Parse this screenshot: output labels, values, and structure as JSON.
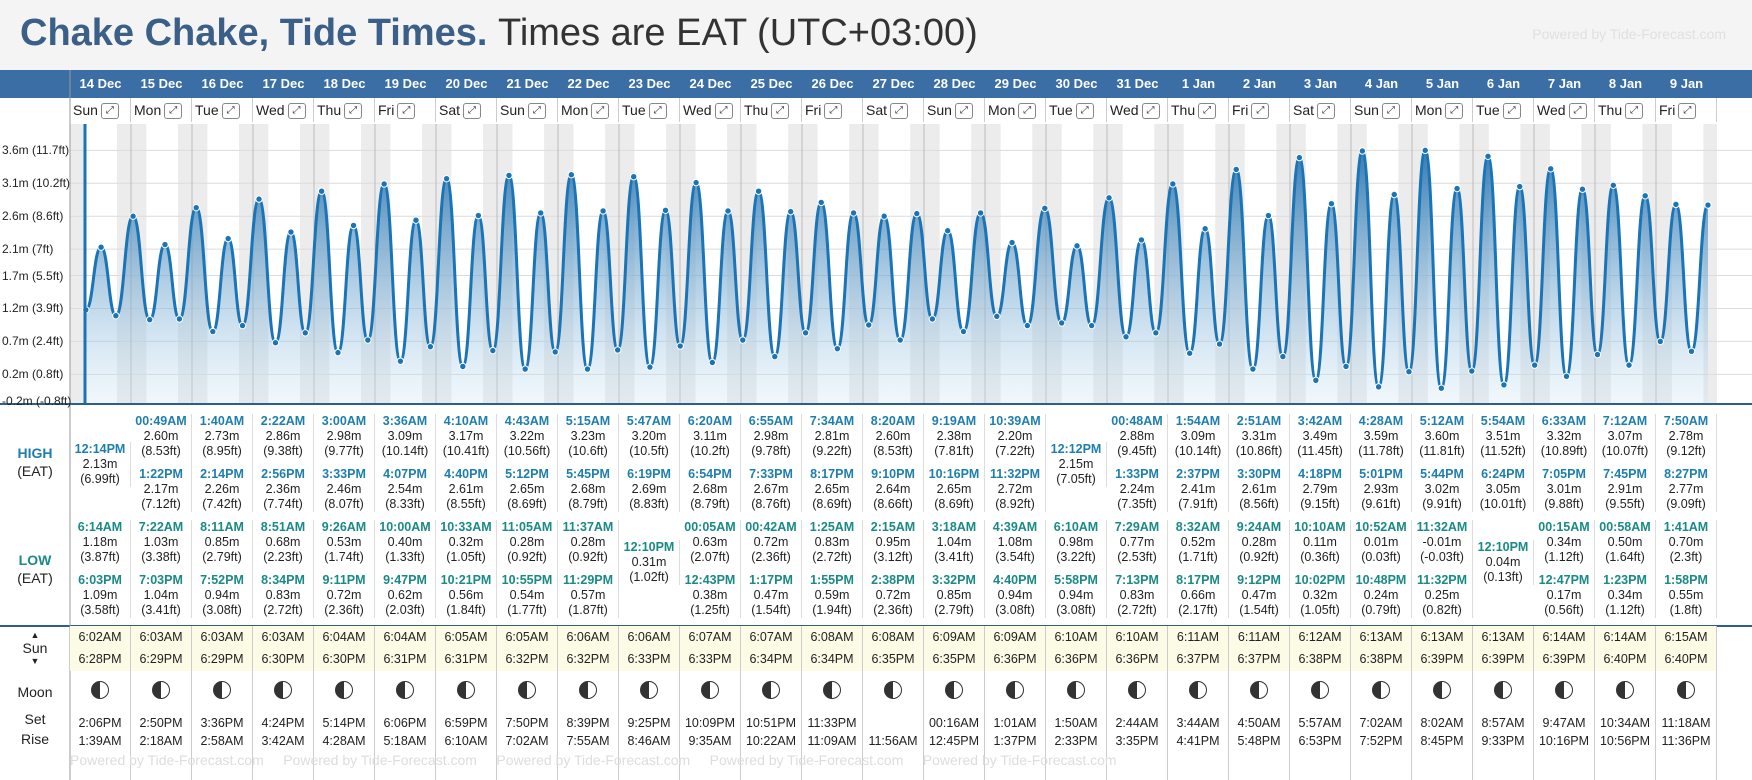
{
  "title": {
    "place": "Chake Chake, Tide Times.",
    "sub": "Times are EAT (UTC+03:00)",
    "powered": "Powered by Tide-Forecast.com"
  },
  "row_labels": {
    "high": "HIGH",
    "low": "LOW",
    "tz": "(EAT)",
    "sun": "Sun",
    "moon": "Moon",
    "set": "Set",
    "rise": "Rise"
  },
  "axis_labels": [
    "3.6m (11.7ft)",
    "3.1m (10.2ft)",
    "2.6m (8.6ft)",
    "2.1m (7ft)",
    "1.7m (5.5ft)",
    "1.2m (3.9ft)",
    "0.7m (2.4ft)",
    "0.2m (0.8ft)",
    "-0.2m (-0.8ft)"
  ],
  "chart_data": {
    "type": "area",
    "unit": "m",
    "ylim": [
      -0.25,
      4.0
    ],
    "days": [
      {
        "date": "14 Dec",
        "dow": "Sun",
        "highs": [
          [
            "12:14PM",
            "2.13m",
            "(6.99ft)"
          ]
        ],
        "lows": [
          [
            "6:14AM",
            "1.18m",
            "(3.87ft)"
          ],
          [
            "6:03PM",
            "1.09m",
            "(3.58ft)"
          ]
        ],
        "sun": [
          "6:02AM",
          "6:28PM"
        ],
        "moon": [
          "2:06PM",
          "1:39AM"
        ]
      },
      {
        "date": "15 Dec",
        "dow": "Mon",
        "highs": [
          [
            "00:49AM",
            "2.60m",
            "(8.53ft)"
          ],
          [
            "1:22PM",
            "2.17m",
            "(7.12ft)"
          ]
        ],
        "lows": [
          [
            "7:22AM",
            "1.03m",
            "(3.38ft)"
          ],
          [
            "7:03PM",
            "1.04m",
            "(3.41ft)"
          ]
        ],
        "sun": [
          "6:03AM",
          "6:29PM"
        ],
        "moon": [
          "2:50PM",
          "2:18AM"
        ]
      },
      {
        "date": "16 Dec",
        "dow": "Tue",
        "highs": [
          [
            "1:40AM",
            "2.73m",
            "(8.95ft)"
          ],
          [
            "2:14PM",
            "2.26m",
            "(7.42ft)"
          ]
        ],
        "lows": [
          [
            "8:11AM",
            "0.85m",
            "(2.79ft)"
          ],
          [
            "7:52PM",
            "0.94m",
            "(3.08ft)"
          ]
        ],
        "sun": [
          "6:03AM",
          "6:29PM"
        ],
        "moon": [
          "3:36PM",
          "2:58AM"
        ]
      },
      {
        "date": "17 Dec",
        "dow": "Wed",
        "highs": [
          [
            "2:22AM",
            "2.86m",
            "(9.38ft)"
          ],
          [
            "2:56PM",
            "2.36m",
            "(7.74ft)"
          ]
        ],
        "lows": [
          [
            "8:51AM",
            "0.68m",
            "(2.23ft)"
          ],
          [
            "8:34PM",
            "0.83m",
            "(2.72ft)"
          ]
        ],
        "sun": [
          "6:03AM",
          "6:30PM"
        ],
        "moon": [
          "4:24PM",
          "3:42AM"
        ]
      },
      {
        "date": "18 Dec",
        "dow": "Thu",
        "highs": [
          [
            "3:00AM",
            "2.98m",
            "(9.77ft)"
          ],
          [
            "3:33PM",
            "2.46m",
            "(8.07ft)"
          ]
        ],
        "lows": [
          [
            "9:26AM",
            "0.53m",
            "(1.74ft)"
          ],
          [
            "9:11PM",
            "0.72m",
            "(2.36ft)"
          ]
        ],
        "sun": [
          "6:04AM",
          "6:30PM"
        ],
        "moon": [
          "5:14PM",
          "4:28AM"
        ]
      },
      {
        "date": "19 Dec",
        "dow": "Fri",
        "highs": [
          [
            "3:36AM",
            "3.09m",
            "(10.14ft)"
          ],
          [
            "4:07PM",
            "2.54m",
            "(8.33ft)"
          ]
        ],
        "lows": [
          [
            "10:00AM",
            "0.40m",
            "(1.33ft)"
          ],
          [
            "9:47PM",
            "0.62m",
            "(2.03ft)"
          ]
        ],
        "sun": [
          "6:04AM",
          "6:31PM"
        ],
        "moon": [
          "6:06PM",
          "5:18AM"
        ]
      },
      {
        "date": "20 Dec",
        "dow": "Sat",
        "highs": [
          [
            "4:10AM",
            "3.17m",
            "(10.41ft)"
          ],
          [
            "4:40PM",
            "2.61m",
            "(8.55ft)"
          ]
        ],
        "lows": [
          [
            "10:33AM",
            "0.32m",
            "(1.05ft)"
          ],
          [
            "10:21PM",
            "0.56m",
            "(1.84ft)"
          ]
        ],
        "sun": [
          "6:05AM",
          "6:31PM"
        ],
        "moon": [
          "6:59PM",
          "6:10AM"
        ]
      },
      {
        "date": "21 Dec",
        "dow": "Sun",
        "highs": [
          [
            "4:43AM",
            "3.22m",
            "(10.56ft)"
          ],
          [
            "5:12PM",
            "2.65m",
            "(8.69ft)"
          ]
        ],
        "lows": [
          [
            "11:05AM",
            "0.28m",
            "(0.92ft)"
          ],
          [
            "10:55PM",
            "0.54m",
            "(1.77ft)"
          ]
        ],
        "sun": [
          "6:05AM",
          "6:32PM"
        ],
        "moon": [
          "7:50PM",
          "7:02AM"
        ]
      },
      {
        "date": "22 Dec",
        "dow": "Mon",
        "highs": [
          [
            "5:15AM",
            "3.23m",
            "(10.6ft)"
          ],
          [
            "5:45PM",
            "2.68m",
            "(8.79ft)"
          ]
        ],
        "lows": [
          [
            "11:37AM",
            "0.28m",
            "(0.92ft)"
          ],
          [
            "11:29PM",
            "0.57m",
            "(1.87ft)"
          ]
        ],
        "sun": [
          "6:06AM",
          "6:32PM"
        ],
        "moon": [
          "8:39PM",
          "7:55AM"
        ]
      },
      {
        "date": "23 Dec",
        "dow": "Tue",
        "highs": [
          [
            "5:47AM",
            "3.20m",
            "(10.5ft)"
          ],
          [
            "6:19PM",
            "2.69m",
            "(8.83ft)"
          ]
        ],
        "lows": [
          [
            "12:10PM",
            "0.31m",
            "(1.02ft)"
          ]
        ],
        "sun": [
          "6:06AM",
          "6:33PM"
        ],
        "moon": [
          "9:25PM",
          "8:46AM"
        ]
      },
      {
        "date": "24 Dec",
        "dow": "Wed",
        "highs": [
          [
            "6:20AM",
            "3.11m",
            "(10.2ft)"
          ],
          [
            "6:54PM",
            "2.68m",
            "(8.79ft)"
          ]
        ],
        "lows": [
          [
            "00:05AM",
            "0.63m",
            "(2.07ft)"
          ],
          [
            "12:43PM",
            "0.38m",
            "(1.25ft)"
          ]
        ],
        "sun": [
          "6:07AM",
          "6:33PM"
        ],
        "moon": [
          "10:09PM",
          "9:35AM"
        ]
      },
      {
        "date": "25 Dec",
        "dow": "Thu",
        "highs": [
          [
            "6:55AM",
            "2.98m",
            "(9.78ft)"
          ],
          [
            "7:33PM",
            "2.67m",
            "(8.76ft)"
          ]
        ],
        "lows": [
          [
            "00:42AM",
            "0.72m",
            "(2.36ft)"
          ],
          [
            "1:17PM",
            "0.47m",
            "(1.54ft)"
          ]
        ],
        "sun": [
          "6:07AM",
          "6:34PM"
        ],
        "moon": [
          "10:51PM",
          "10:22AM"
        ]
      },
      {
        "date": "26 Dec",
        "dow": "Fri",
        "highs": [
          [
            "7:34AM",
            "2.81m",
            "(9.22ft)"
          ],
          [
            "8:17PM",
            "2.65m",
            "(8.69ft)"
          ]
        ],
        "lows": [
          [
            "1:25AM",
            "0.83m",
            "(2.72ft)"
          ],
          [
            "1:55PM",
            "0.59m",
            "(1.94ft)"
          ]
        ],
        "sun": [
          "6:08AM",
          "6:34PM"
        ],
        "moon": [
          "11:33PM",
          "11:09AM"
        ]
      },
      {
        "date": "27 Dec",
        "dow": "Sat",
        "highs": [
          [
            "8:20AM",
            "2.60m",
            "(8.53ft)"
          ],
          [
            "9:10PM",
            "2.64m",
            "(8.66ft)"
          ]
        ],
        "lows": [
          [
            "2:15AM",
            "0.95m",
            "(3.12ft)"
          ],
          [
            "2:38PM",
            "0.72m",
            "(2.36ft)"
          ]
        ],
        "sun": [
          "6:08AM",
          "6:35PM"
        ],
        "moon": [
          "",
          "11:56AM"
        ]
      },
      {
        "date": "28 Dec",
        "dow": "Sun",
        "highs": [
          [
            "9:19AM",
            "2.38m",
            "(7.81ft)"
          ],
          [
            "10:16PM",
            "2.65m",
            "(8.69ft)"
          ]
        ],
        "lows": [
          [
            "3:18AM",
            "1.04m",
            "(3.41ft)"
          ],
          [
            "3:32PM",
            "0.85m",
            "(2.79ft)"
          ]
        ],
        "sun": [
          "6:09AM",
          "6:35PM"
        ],
        "moon": [
          "00:16AM",
          "12:45PM"
        ]
      },
      {
        "date": "29 Dec",
        "dow": "Mon",
        "highs": [
          [
            "10:39AM",
            "2.20m",
            "(7.22ft)"
          ],
          [
            "11:32PM",
            "2.72m",
            "(8.92ft)"
          ]
        ],
        "lows": [
          [
            "4:39AM",
            "1.08m",
            "(3.54ft)"
          ],
          [
            "4:40PM",
            "0.94m",
            "(3.08ft)"
          ]
        ],
        "sun": [
          "6:09AM",
          "6:36PM"
        ],
        "moon": [
          "1:01AM",
          "1:37PM"
        ]
      },
      {
        "date": "30 Dec",
        "dow": "Tue",
        "highs": [
          [
            "12:12PM",
            "2.15m",
            "(7.05ft)"
          ]
        ],
        "lows": [
          [
            "6:10AM",
            "0.98m",
            "(3.22ft)"
          ],
          [
            "5:58PM",
            "0.94m",
            "(3.08ft)"
          ]
        ],
        "sun": [
          "6:10AM",
          "6:36PM"
        ],
        "moon": [
          "1:50AM",
          "2:33PM"
        ]
      },
      {
        "date": "31 Dec",
        "dow": "Wed",
        "highs": [
          [
            "00:48AM",
            "2.88m",
            "(9.45ft)"
          ],
          [
            "1:33PM",
            "2.24m",
            "(7.35ft)"
          ]
        ],
        "lows": [
          [
            "7:29AM",
            "0.77m",
            "(2.53ft)"
          ],
          [
            "7:13PM",
            "0.83m",
            "(2.72ft)"
          ]
        ],
        "sun": [
          "6:10AM",
          "6:36PM"
        ],
        "moon": [
          "2:44AM",
          "3:35PM"
        ]
      },
      {
        "date": "1 Jan",
        "dow": "Thu",
        "highs": [
          [
            "1:54AM",
            "3.09m",
            "(10.14ft)"
          ],
          [
            "2:37PM",
            "2.41m",
            "(7.91ft)"
          ]
        ],
        "lows": [
          [
            "8:32AM",
            "0.52m",
            "(1.71ft)"
          ],
          [
            "8:17PM",
            "0.66m",
            "(2.17ft)"
          ]
        ],
        "sun": [
          "6:11AM",
          "6:37PM"
        ],
        "moon": [
          "3:44AM",
          "4:41PM"
        ]
      },
      {
        "date": "2 Jan",
        "dow": "Fri",
        "highs": [
          [
            "2:51AM",
            "3.31m",
            "(10.86ft)"
          ],
          [
            "3:30PM",
            "2.61m",
            "(8.56ft)"
          ]
        ],
        "lows": [
          [
            "9:24AM",
            "0.28m",
            "(0.92ft)"
          ],
          [
            "9:12PM",
            "0.47m",
            "(1.54ft)"
          ]
        ],
        "sun": [
          "6:11AM",
          "6:37PM"
        ],
        "moon": [
          "4:50AM",
          "5:48PM"
        ]
      },
      {
        "date": "3 Jan",
        "dow": "Sat",
        "highs": [
          [
            "3:42AM",
            "3.49m",
            "(11.45ft)"
          ],
          [
            "4:18PM",
            "2.79m",
            "(9.15ft)"
          ]
        ],
        "lows": [
          [
            "10:10AM",
            "0.11m",
            "(0.36ft)"
          ],
          [
            "10:02PM",
            "0.32m",
            "(1.05ft)"
          ]
        ],
        "sun": [
          "6:12AM",
          "6:38PM"
        ],
        "moon": [
          "5:57AM",
          "6:53PM"
        ]
      },
      {
        "date": "4 Jan",
        "dow": "Sun",
        "highs": [
          [
            "4:28AM",
            "3.59m",
            "(11.78ft)"
          ],
          [
            "5:01PM",
            "2.93m",
            "(9.61ft)"
          ]
        ],
        "lows": [
          [
            "10:52AM",
            "0.01m",
            "(0.03ft)"
          ],
          [
            "10:48PM",
            "0.24m",
            "(0.79ft)"
          ]
        ],
        "sun": [
          "6:13AM",
          "6:38PM"
        ],
        "moon": [
          "7:02AM",
          "7:52PM"
        ]
      },
      {
        "date": "5 Jan",
        "dow": "Mon",
        "highs": [
          [
            "5:12AM",
            "3.60m",
            "(11.81ft)"
          ],
          [
            "5:44PM",
            "3.02m",
            "(9.91ft)"
          ]
        ],
        "lows": [
          [
            "11:32AM",
            "-0.01m",
            "(-0.03ft)"
          ],
          [
            "11:32PM",
            "0.25m",
            "(0.82ft)"
          ]
        ],
        "sun": [
          "6:13AM",
          "6:39PM"
        ],
        "moon": [
          "8:02AM",
          "8:45PM"
        ]
      },
      {
        "date": "6 Jan",
        "dow": "Tue",
        "highs": [
          [
            "5:54AM",
            "3.51m",
            "(11.52ft)"
          ],
          [
            "6:24PM",
            "3.05m",
            "(10.01ft)"
          ]
        ],
        "lows": [
          [
            "12:10PM",
            "0.04m",
            "(0.13ft)"
          ]
        ],
        "sun": [
          "6:13AM",
          "6:39PM"
        ],
        "moon": [
          "8:57AM",
          "9:33PM"
        ]
      },
      {
        "date": "7 Jan",
        "dow": "Wed",
        "highs": [
          [
            "6:33AM",
            "3.32m",
            "(10.89ft)"
          ],
          [
            "7:05PM",
            "3.01m",
            "(9.88ft)"
          ]
        ],
        "lows": [
          [
            "00:15AM",
            "0.34m",
            "(1.12ft)"
          ],
          [
            "12:47PM",
            "0.17m",
            "(0.56ft)"
          ]
        ],
        "sun": [
          "6:14AM",
          "6:39PM"
        ],
        "moon": [
          "9:47AM",
          "10:16PM"
        ]
      },
      {
        "date": "8 Jan",
        "dow": "Thu",
        "highs": [
          [
            "7:12AM",
            "3.07m",
            "(10.07ft)"
          ],
          [
            "7:45PM",
            "2.91m",
            "(9.55ft)"
          ]
        ],
        "lows": [
          [
            "00:58AM",
            "0.50m",
            "(1.64ft)"
          ],
          [
            "1:23PM",
            "0.34m",
            "(1.12ft)"
          ]
        ],
        "sun": [
          "6:14AM",
          "6:40PM"
        ],
        "moon": [
          "10:34AM",
          "10:56PM"
        ]
      },
      {
        "date": "9 Jan",
        "dow": "Fri",
        "highs": [
          [
            "7:50AM",
            "2.78m",
            "(9.12ft)"
          ],
          [
            "8:27PM",
            "2.77m",
            "(9.09ft)"
          ]
        ],
        "lows": [
          [
            "1:41AM",
            "0.70m",
            "(2.3ft)"
          ],
          [
            "1:58PM",
            "0.55m",
            "(1.8ft)"
          ]
        ],
        "sun": [
          "6:15AM",
          "6:40PM"
        ],
        "moon": [
          "11:18AM",
          "11:36PM"
        ]
      }
    ]
  }
}
